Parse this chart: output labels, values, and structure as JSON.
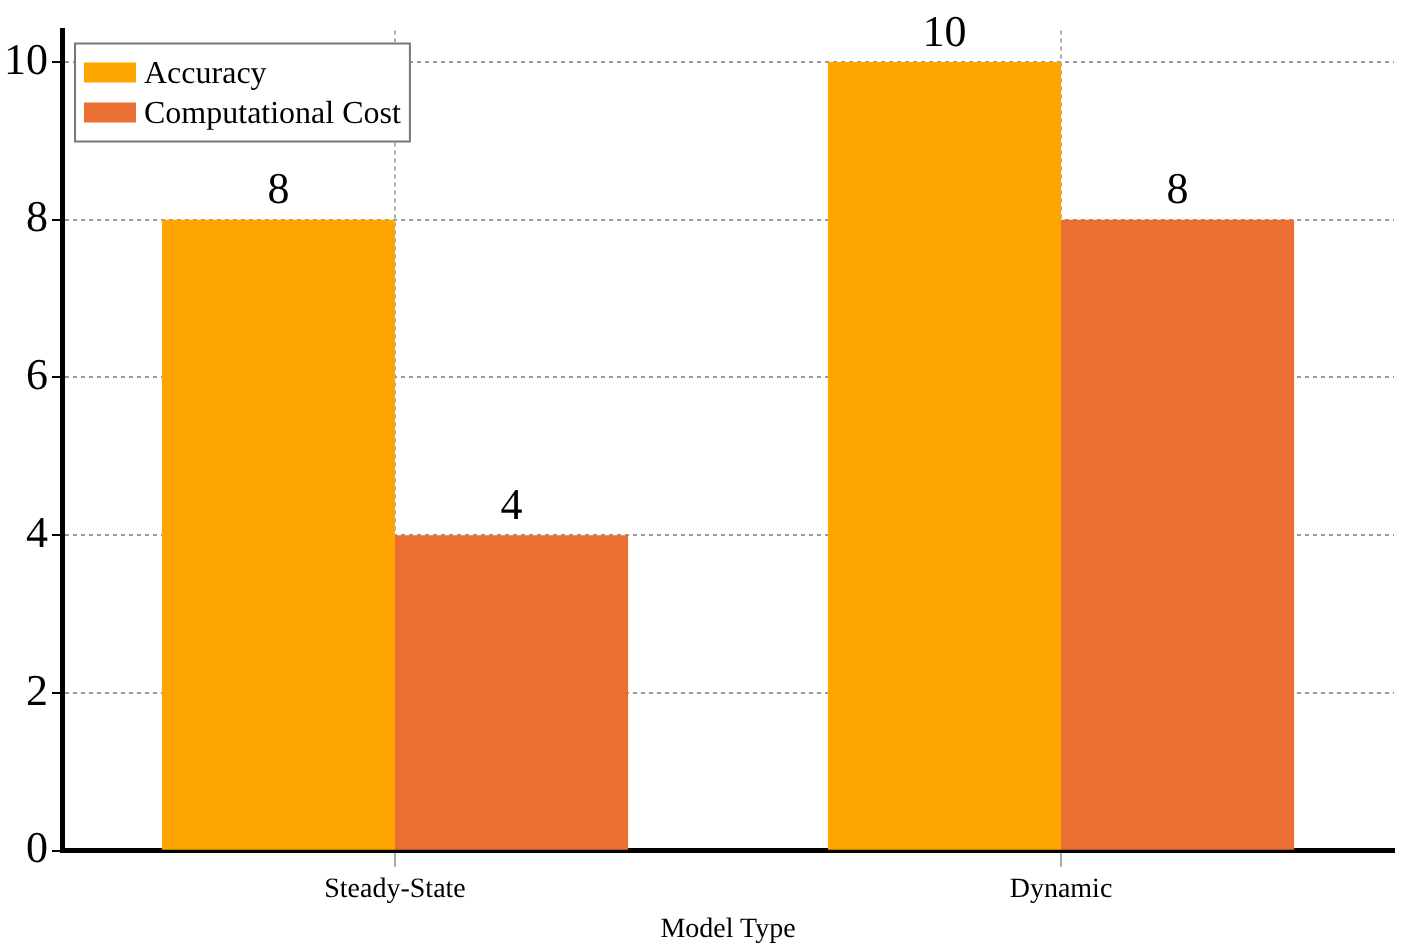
{
  "chart_data": {
    "type": "bar",
    "xlabel": "Model Type",
    "categories": [
      "Steady-State",
      "Dynamic"
    ],
    "series": [
      {
        "name": "Accuracy",
        "color": "#ffa500",
        "values": [
          8,
          10
        ]
      },
      {
        "name": "Computational Cost",
        "color": "#e96f33",
        "values": [
          4,
          8
        ]
      }
    ],
    "ylim": [
      0,
      10.4
    ],
    "yticks": [
      0,
      2,
      4,
      6,
      8,
      10
    ],
    "grid": true,
    "legend": "top left",
    "data_labels": true
  }
}
